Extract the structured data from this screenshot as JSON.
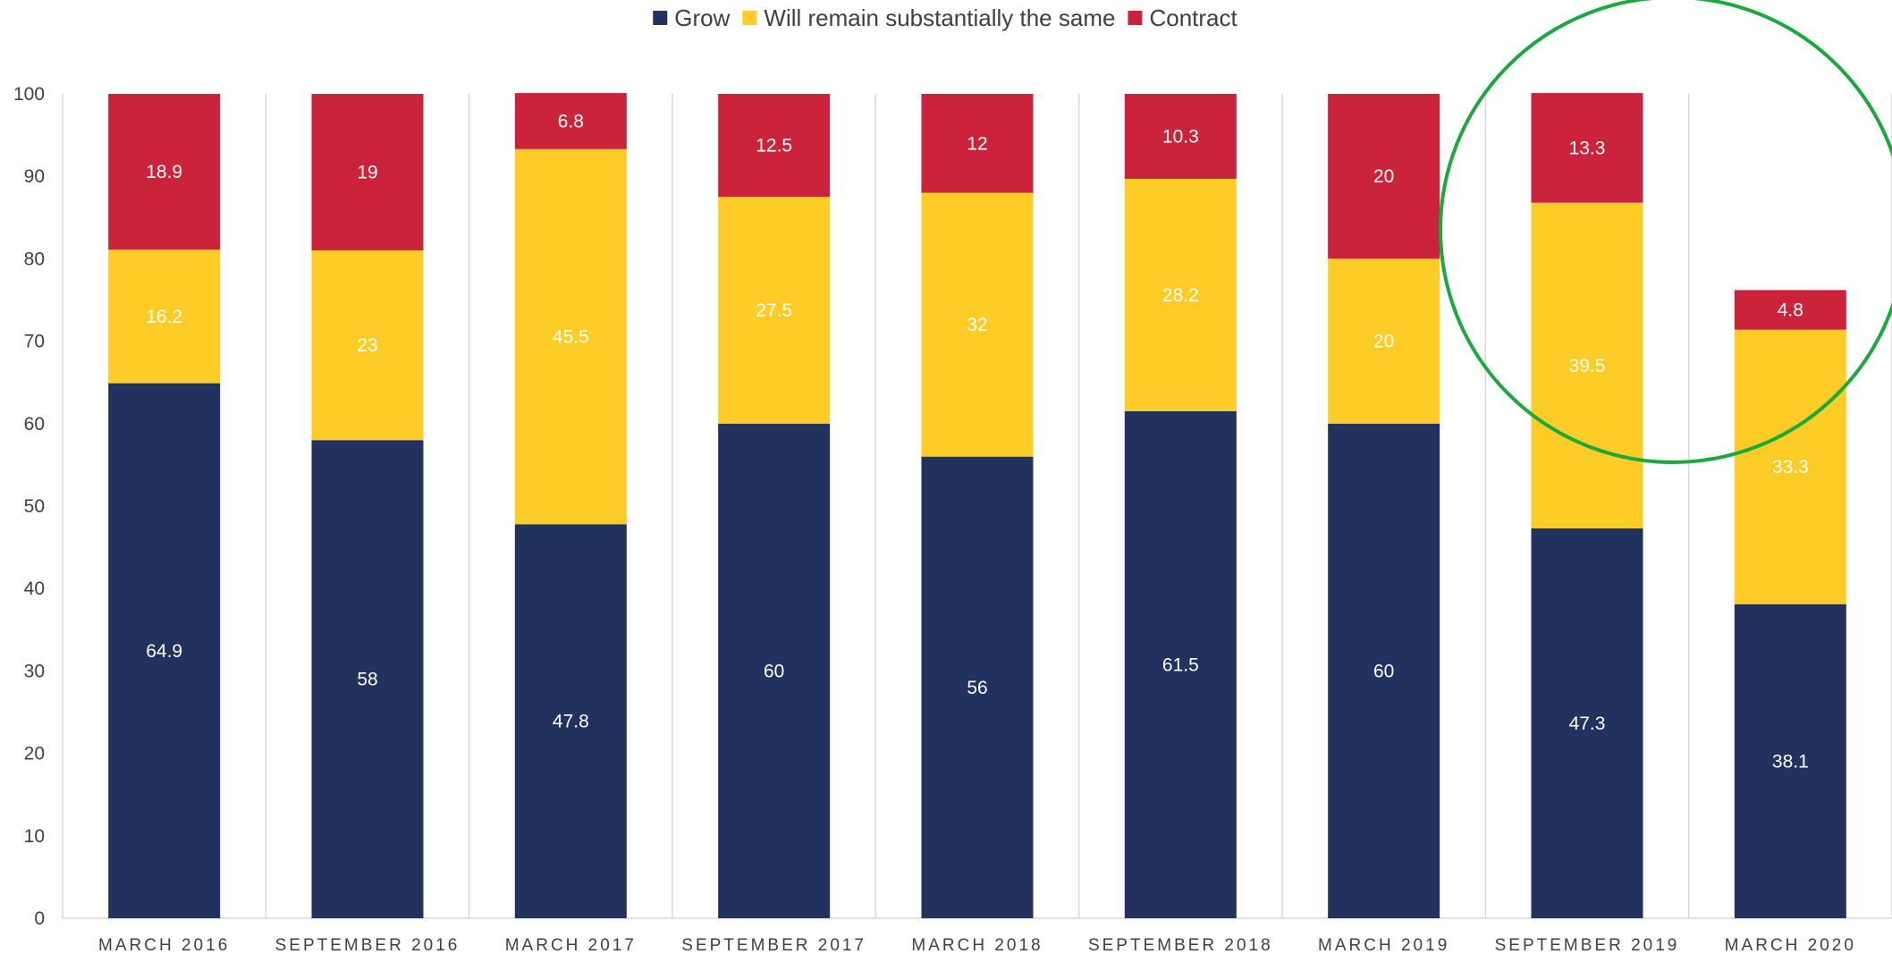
{
  "chart_data": {
    "type": "bar",
    "stacked": true,
    "categories": [
      "MARCH 2016",
      "SEPTEMBER 2016",
      "MARCH 2017",
      "SEPTEMBER 2017",
      "MARCH 2018",
      "SEPTEMBER 2018",
      "MARCH 2019",
      "SEPTEMBER 2019",
      "MARCH 2020"
    ],
    "series": [
      {
        "name": "Grow",
        "color": "#21325e",
        "values": [
          64.9,
          58,
          47.8,
          60,
          56,
          61.5,
          60,
          47.3,
          38.1
        ]
      },
      {
        "name": "Will remain substantially the same",
        "color": "#fdcc26",
        "values": [
          16.2,
          23,
          45.5,
          27.5,
          32,
          28.2,
          20,
          39.5,
          33.3
        ]
      },
      {
        "name": "Contract",
        "color": "#cc233c",
        "values": [
          18.9,
          19,
          6.8,
          12.5,
          12,
          10.3,
          20,
          13.3,
          4.8
        ]
      }
    ],
    "ylim": [
      0,
      100
    ],
    "yticks": [
      0,
      10,
      20,
      30,
      40,
      50,
      60,
      70,
      80,
      90,
      100
    ],
    "legend": "top-center",
    "grid": false,
    "annotation": {
      "type": "circle",
      "color": "#1aaa3c",
      "highlight_category": "SEPTEMBER 2019"
    }
  }
}
